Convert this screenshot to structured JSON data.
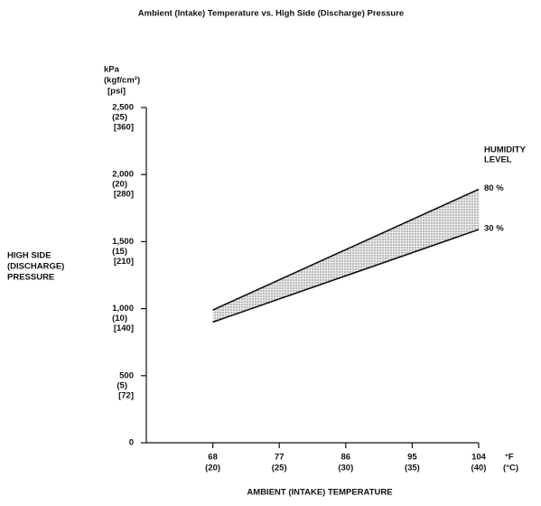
{
  "chart_data": {
    "type": "line",
    "title": "Ambient (Intake) Temperature vs. High Side (Discharge) Pressure",
    "ylabel": [
      "HIGH SIDE",
      "(DISCHARGE)",
      "PRESSURE"
    ],
    "yunit": [
      "kPa",
      "(kgf/cm²)",
      "[psi]"
    ],
    "xlabel": "AMBIENT (INTAKE) TEMPERATURE",
    "xunit": [
      "°F",
      "(°C)"
    ],
    "legend_title": [
      "HUMIDITY",
      "LEVEL"
    ],
    "x": [
      68,
      104
    ],
    "xlim": [
      59,
      104
    ],
    "xticks": [
      68,
      77,
      86,
      95,
      104
    ],
    "xticks_celsius": [
      "(20)",
      "(25)",
      "(30)",
      "(35)",
      "(40)"
    ],
    "ylim": [
      0,
      2500
    ],
    "yticks": [
      0,
      500,
      {
        "value": 1000,
        "label": "1,000"
      },
      {
        "value": 1500,
        "label": "1,500"
      },
      {
        "value": 2000,
        "label": "2,000"
      },
      {
        "value": 2500,
        "label": "2,500"
      }
    ],
    "yticks_kgf": [
      null,
      "(5)",
      "(10)",
      "(15)",
      "(20)",
      "(25)"
    ],
    "yticks_psi": [
      null,
      "[72]",
      "[140]",
      "[210]",
      "[280]",
      "[360]"
    ],
    "series": [
      {
        "name": "80 %",
        "color": "#111111",
        "values": [
          990,
          1890
        ]
      },
      {
        "name": "30 %",
        "color": "#111111",
        "values": [
          900,
          1590
        ]
      }
    ],
    "band_color": "#c8c8c8"
  }
}
